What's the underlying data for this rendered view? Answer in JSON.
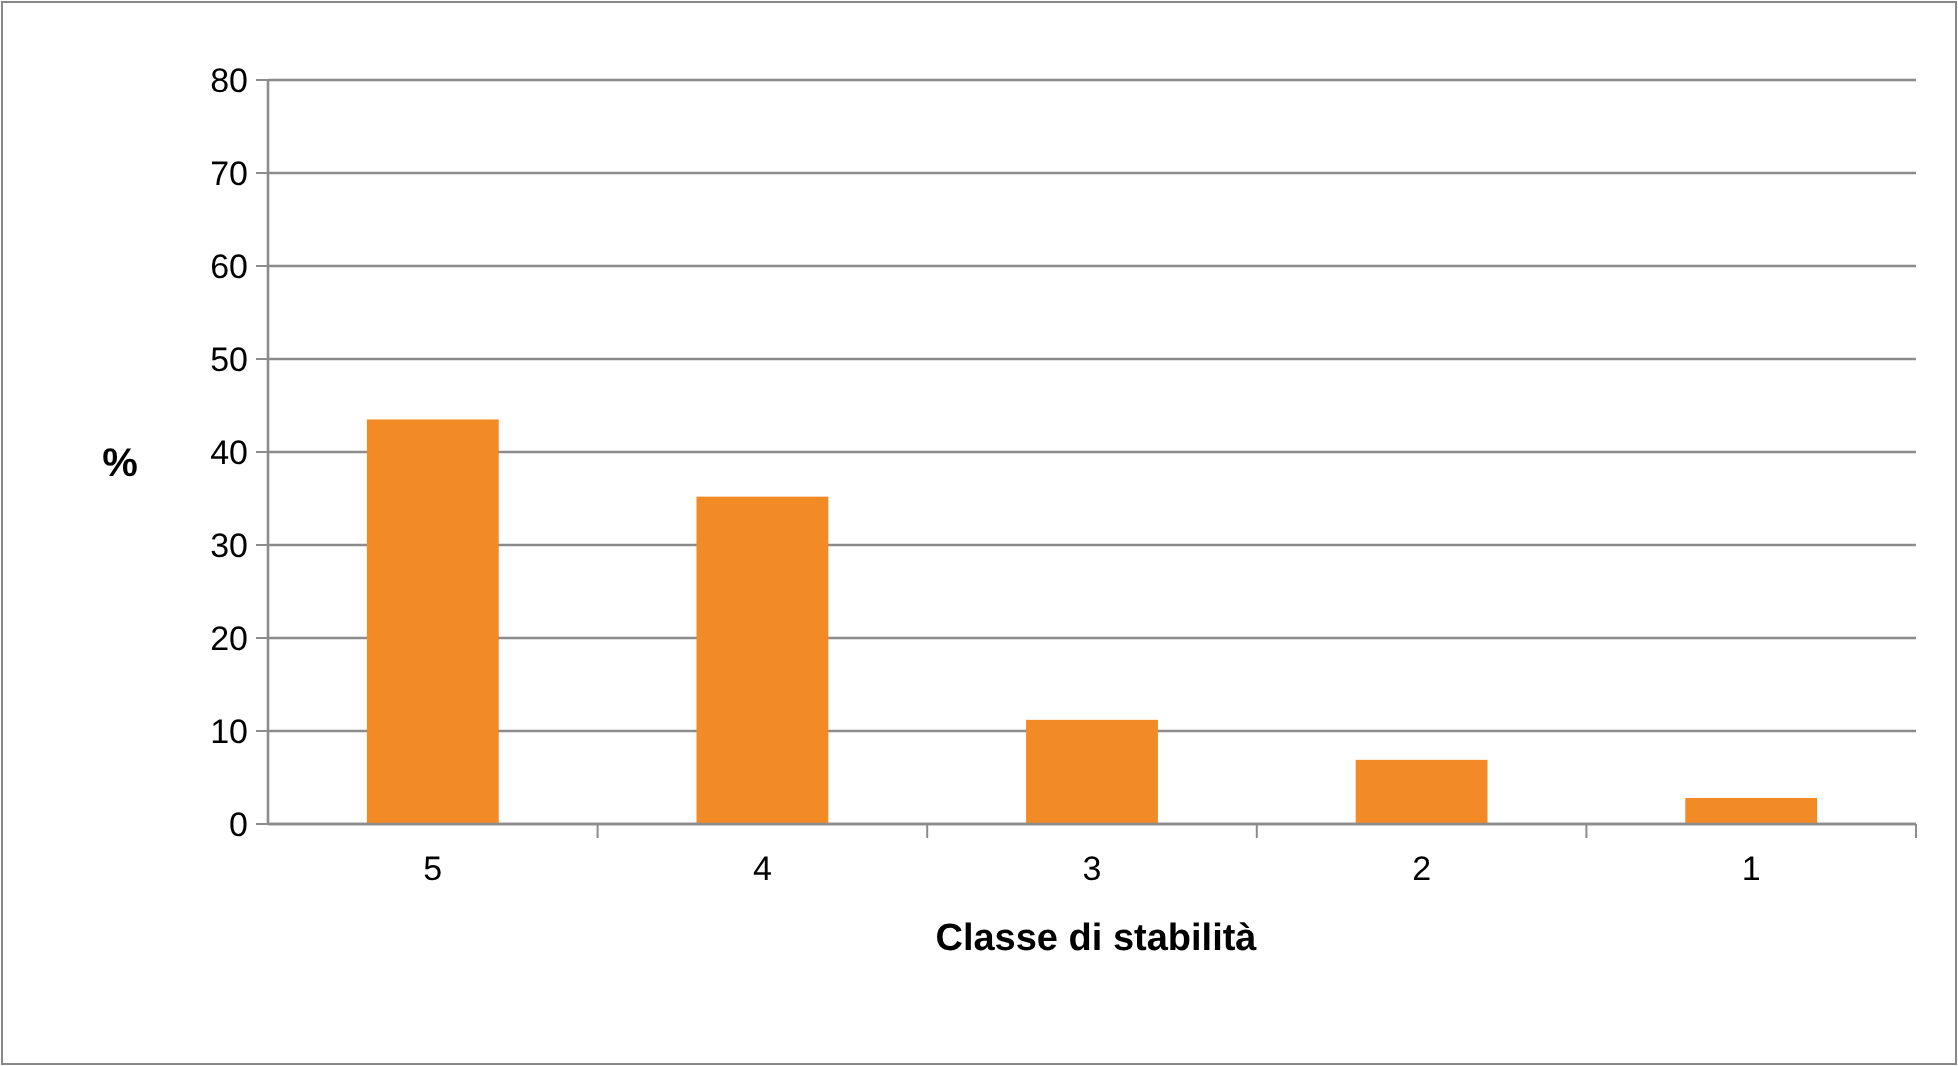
{
  "chart_data": {
    "type": "bar",
    "xlabel": "Classe di stabilità",
    "ylabel": "%",
    "categories": [
      "5",
      "4",
      "3",
      "2",
      "1"
    ],
    "values": [
      43.5,
      35.2,
      11.2,
      6.9,
      2.8
    ],
    "color": "#f28a26",
    "ylim": [
      0,
      80
    ],
    "yticks": [
      0,
      10,
      20,
      30,
      40,
      50,
      60,
      70,
      80
    ],
    "grid": "y"
  }
}
